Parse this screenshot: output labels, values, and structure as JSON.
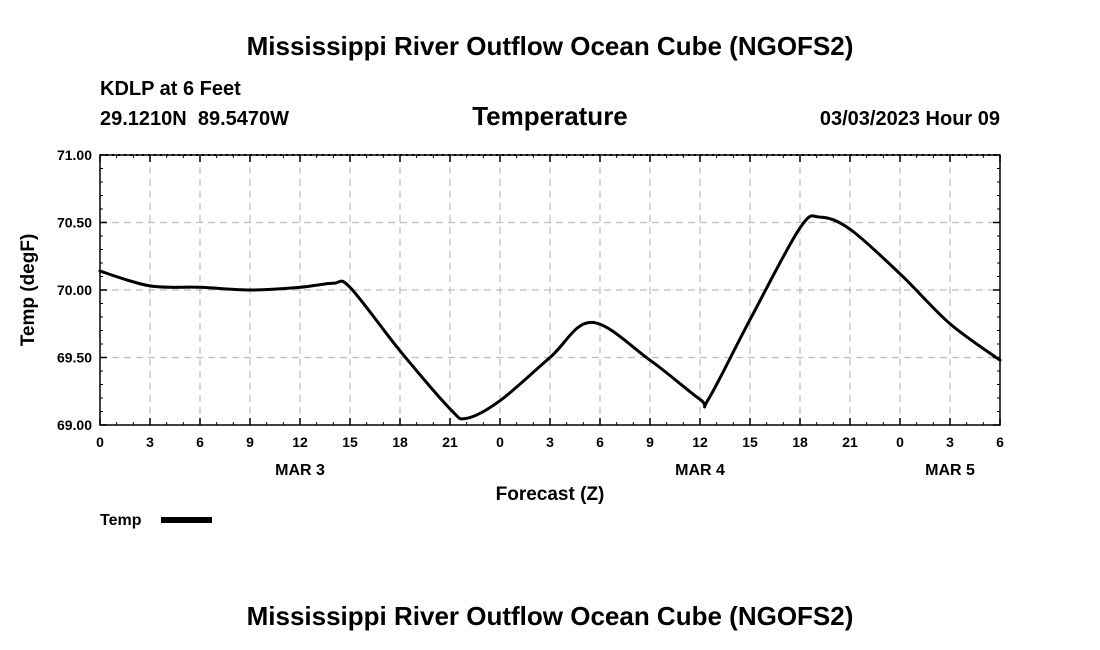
{
  "chart_data": {
    "type": "line",
    "title": "Mississippi River Outflow Ocean Cube (NGOFS2)",
    "footer_title": "Mississippi River Outflow Ocean Cube (NGOFS2)",
    "station": "KDLP at 6 Feet",
    "location": "29.1210N  89.5470W",
    "subtitle": "Temperature",
    "timestamp": "03/03/2023 Hour 09",
    "xlabel": "Forecast (Z)",
    "ylabel": "Temp (degF)",
    "xlim": [
      0,
      54
    ],
    "ylim": [
      69.0,
      71.0
    ],
    "grid": true,
    "x_ticks": [
      {
        "x": 0,
        "label": "0"
      },
      {
        "x": 3,
        "label": "3"
      },
      {
        "x": 6,
        "label": "6"
      },
      {
        "x": 9,
        "label": "9"
      },
      {
        "x": 12,
        "label": "12"
      },
      {
        "x": 15,
        "label": "15"
      },
      {
        "x": 18,
        "label": "18"
      },
      {
        "x": 21,
        "label": "21"
      },
      {
        "x": 24,
        "label": "0"
      },
      {
        "x": 27,
        "label": "3"
      },
      {
        "x": 30,
        "label": "6"
      },
      {
        "x": 33,
        "label": "9"
      },
      {
        "x": 36,
        "label": "12"
      },
      {
        "x": 39,
        "label": "15"
      },
      {
        "x": 42,
        "label": "18"
      },
      {
        "x": 45,
        "label": "21"
      },
      {
        "x": 48,
        "label": "0"
      },
      {
        "x": 51,
        "label": "3"
      },
      {
        "x": 54,
        "label": "6"
      }
    ],
    "y_ticks": [
      {
        "y": 69.0,
        "label": "69.00"
      },
      {
        "y": 69.5,
        "label": "69.50"
      },
      {
        "y": 70.0,
        "label": "70.00"
      },
      {
        "y": 70.5,
        "label": "70.50"
      },
      {
        "y": 71.0,
        "label": "71.00"
      }
    ],
    "day_labels": [
      {
        "x": 12,
        "label": "MAR 3"
      },
      {
        "x": 36,
        "label": "MAR 4"
      },
      {
        "x": 51,
        "label": "MAR 5"
      }
    ],
    "series": [
      {
        "name": "Temp",
        "color": "#000000",
        "x": [
          0,
          3,
          6,
          9,
          12,
          14,
          15,
          18,
          21,
          22,
          24,
          27,
          29.5,
          33,
          36,
          36.5,
          39,
          42,
          43.2,
          45,
          48,
          51,
          54
        ],
        "y": [
          70.14,
          70.03,
          70.02,
          70.0,
          70.02,
          70.05,
          70.02,
          69.55,
          69.12,
          69.05,
          69.18,
          69.5,
          69.76,
          69.48,
          69.19,
          69.19,
          69.78,
          70.46,
          70.54,
          70.45,
          70.12,
          69.75,
          69.48
        ]
      }
    ],
    "legend": {
      "label": "Temp",
      "placement": "bottom-left"
    }
  }
}
